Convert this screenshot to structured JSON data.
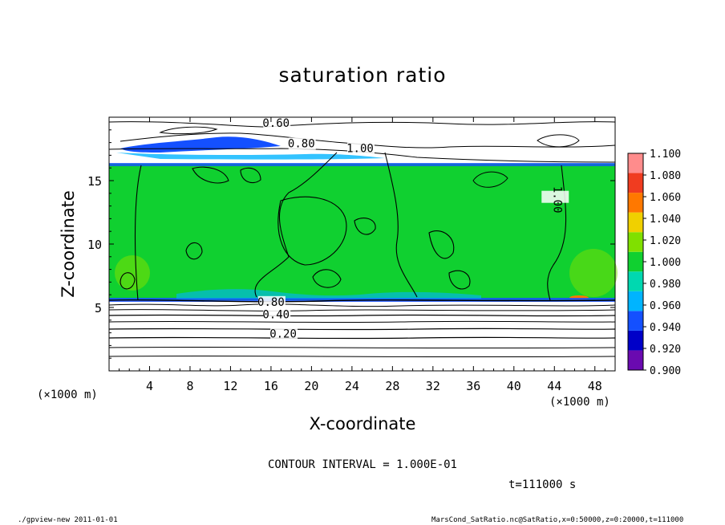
{
  "chart_data": {
    "type": "heatmap",
    "title": "saturation ratio",
    "xlabel": "X-coordinate",
    "ylabel": "Z-coordinate",
    "x_unit_label": "(×1000 m)",
    "y_unit_label": "(×1000 m)",
    "xlim": [
      0,
      50
    ],
    "ylim": [
      0,
      20
    ],
    "x_ticks": [
      4,
      8,
      12,
      16,
      20,
      24,
      28,
      32,
      36,
      40,
      44,
      48
    ],
    "y_ticks": [
      5,
      10,
      15
    ],
    "colorbar": {
      "levels": [
        0.9,
        0.92,
        0.94,
        0.96,
        0.98,
        1.0,
        1.02,
        1.04,
        1.06,
        1.08,
        1.1
      ],
      "labels": [
        "0.900",
        "0.920",
        "0.940",
        "0.960",
        "0.980",
        "1.000",
        "1.020",
        "1.040",
        "1.060",
        "1.080",
        "1.100"
      ],
      "colors": [
        "#6a0ab0",
        "#0000c8",
        "#1450ff",
        "#00b4ff",
        "#00d8b0",
        "#10d030",
        "#80e000",
        "#f0d000",
        "#ff7800",
        "#f03c20",
        "#ff8c8c"
      ]
    },
    "fill_region": {
      "x": [
        0,
        50
      ],
      "z": [
        5.7,
        16.2
      ],
      "dominant_value": 1.0
    },
    "contour_labels": [
      {
        "text": "0.60",
        "x": 16.5,
        "z": 19.3
      },
      {
        "text": "0.80",
        "x": 19.0,
        "z": 17.7
      },
      {
        "text": "1.00",
        "x": 24.8,
        "z": 17.3
      },
      {
        "text": "1.00",
        "x": 44.0,
        "z": 13.5
      },
      {
        "text": "0.80",
        "x": 16.0,
        "z": 5.2
      },
      {
        "text": "0.40",
        "x": 16.5,
        "z": 4.2
      },
      {
        "text": "0.20",
        "x": 17.2,
        "z": 2.7
      }
    ],
    "contour_interval": "CONTOUR INTERVAL = 1.000E-01",
    "time_label": "t=111000 s"
  },
  "footer": {
    "left": "./gpview-new   2011-01-01",
    "right": "MarsCond_SatRatio.nc@SatRatio,x=0:50000,z=0:20000,t=111000"
  }
}
